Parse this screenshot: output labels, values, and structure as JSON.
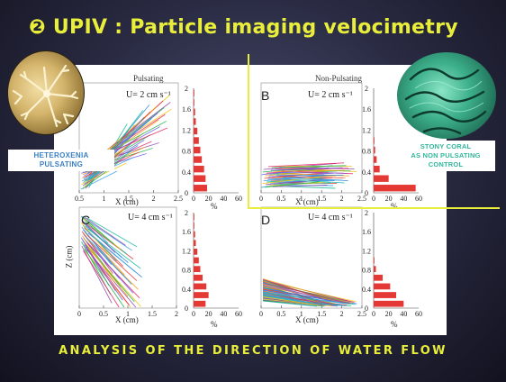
{
  "slide": {
    "title": "❷ UPIV : Particle imaging velocimetry",
    "footer": "ANALYSIS OF THE DIRECTION OF WATER FLOW",
    "left_label_line1": "HETEROXENIA",
    "left_label_line2": "PULSATING",
    "right_label_line1": "STONY CORAL",
    "right_label_line2": "AS NON PULSATING",
    "right_label_line3": "CONTROL",
    "accent_color": "#e8ee3a",
    "icons": [
      "heteroxenia-coral-photo",
      "stony-coral-photo"
    ]
  },
  "figure": {
    "column_pulsating": "Pulsating",
    "column_nonpulsating": "Non-Pulsating",
    "x_axis_label": "X (cm)",
    "z_axis_label": "Z (cm)",
    "pct_label": "%",
    "panels": [
      {
        "letter": "",
        "speed": "U= 2 cm s⁻¹"
      },
      {
        "letter": "B",
        "speed": "U= 2 cm s⁻¹"
      },
      {
        "letter": "C",
        "speed": "U= 4 cm s⁻¹"
      },
      {
        "letter": "D",
        "speed": "U= 4 cm s⁻¹"
      }
    ],
    "x_ticks_a": [
      "0.5",
      "1",
      "1.5",
      "2",
      "2.5"
    ],
    "x_ticks_b": [
      "0",
      "0.5",
      "1",
      "1.5",
      "2",
      "2.5"
    ],
    "x_ticks_c": [
      "0",
      "0.5",
      "1",
      "1.5",
      "2"
    ],
    "x_ticks_d": [
      "0",
      "0.5",
      "1",
      "1.5",
      "2",
      "2.5"
    ],
    "z_ticks_top": [
      "2",
      "1.6",
      "1.2",
      "0.8",
      "0.4",
      "0"
    ],
    "z_ticks_bottom": [
      "2",
      "1.6",
      "1.2",
      "0.8",
      "0.4",
      "0"
    ],
    "z_ticks_left": [
      "2",
      "1.6",
      "1.2",
      "0.8",
      "0.4",
      "0"
    ],
    "pct_ticks": [
      "0",
      "20",
      "40",
      "60"
    ],
    "pct_ticks_right": [
      "0",
      "20",
      "40",
      "60"
    ]
  },
  "chart_data": [
    {
      "type": "bar",
      "title": "Pulsating, U= 2 cm s⁻¹",
      "orientation": "horizontal",
      "categories": [
        "0",
        "0.2",
        "0.4",
        "0.6",
        "0.8",
        "1.0",
        "1.2",
        "1.4",
        "1.6",
        "1.8",
        "2.0"
      ],
      "values": [
        18,
        16,
        14,
        11,
        9,
        7,
        5,
        3,
        2,
        1,
        1
      ],
      "xlabel": "%",
      "xlim": [
        0,
        60
      ]
    },
    {
      "type": "bar",
      "title": "Non-Pulsating, U= 2 cm s⁻¹",
      "orientation": "horizontal",
      "categories": [
        "0",
        "0.2",
        "0.4",
        "0.6",
        "0.8",
        "1.0",
        "1.2",
        "1.4",
        "1.6",
        "1.8",
        "2.0"
      ],
      "values": [
        56,
        20,
        8,
        4,
        2,
        1,
        0,
        0,
        0,
        0,
        0
      ],
      "xlabel": "%",
      "xlim": [
        0,
        60
      ]
    },
    {
      "type": "bar",
      "title": "Pulsating, U= 4 cm s⁻¹",
      "orientation": "horizontal",
      "categories": [
        "0",
        "0.2",
        "0.4",
        "0.6",
        "0.8",
        "1.0",
        "1.2",
        "1.4",
        "1.6",
        "1.8",
        "2.0"
      ],
      "values": [
        16,
        20,
        17,
        12,
        9,
        7,
        5,
        3,
        2,
        1,
        1
      ],
      "xlabel": "%",
      "xlim": [
        0,
        60
      ]
    },
    {
      "type": "bar",
      "title": "Non-Pulsating, U= 4 cm s⁻¹",
      "orientation": "horizontal",
      "categories": [
        "0",
        "0.2",
        "0.4",
        "0.6",
        "0.8",
        "1.0",
        "1.2",
        "1.4",
        "1.6",
        "1.8",
        "2.0"
      ],
      "values": [
        40,
        30,
        22,
        12,
        3,
        1,
        0,
        0,
        0,
        0,
        0
      ],
      "xlabel": "%",
      "xlim": [
        0,
        60
      ]
    }
  ]
}
